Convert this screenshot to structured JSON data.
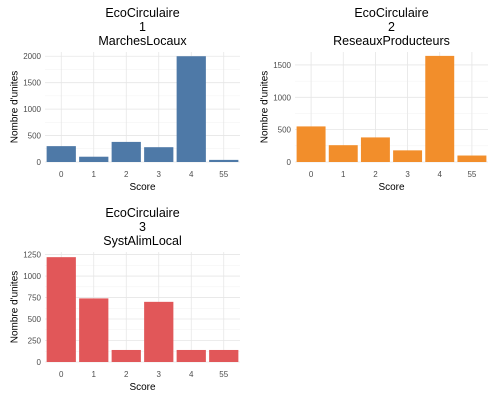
{
  "chart_data": [
    {
      "type": "bar",
      "title": [
        "EcoCirculaire",
        "1",
        "MarchesLocaux"
      ],
      "xlabel": "Score",
      "ylabel": "Nombre d'unites",
      "categories": [
        "0",
        "1",
        "2",
        "3",
        "4",
        "55"
      ],
      "values": [
        300,
        100,
        380,
        280,
        2000,
        40
      ],
      "ylim": [
        0,
        2080
      ],
      "yticks": [
        0,
        500,
        1000,
        1500,
        2000
      ],
      "color": "#4e79a7",
      "grid": true,
      "legend": "none"
    },
    {
      "type": "bar",
      "title": [
        "EcoCirculaire",
        "2",
        "ReseauxProducteurs"
      ],
      "xlabel": "Score",
      "ylabel": "Nombre d'unites",
      "categories": [
        "0",
        "1",
        "2",
        "3",
        "4",
        "55"
      ],
      "values": [
        550,
        260,
        380,
        180,
        1640,
        100
      ],
      "ylim": [
        0,
        1700
      ],
      "yticks": [
        0,
        500,
        1000,
        1500
      ],
      "color": "#f28e2b",
      "grid": true,
      "legend": "none"
    },
    {
      "type": "bar",
      "title": [
        "EcoCirculaire",
        "3",
        "SystAlimLocal"
      ],
      "xlabel": "Score",
      "ylabel": "Nombre d'unites",
      "categories": [
        "0",
        "1",
        "2",
        "3",
        "4",
        "55"
      ],
      "values": [
        1220,
        740,
        140,
        700,
        140,
        140
      ],
      "ylim": [
        0,
        1280
      ],
      "yticks": [
        0,
        250,
        500,
        750,
        1000,
        1250
      ],
      "color": "#e15759",
      "grid": true,
      "legend": "none"
    }
  ]
}
